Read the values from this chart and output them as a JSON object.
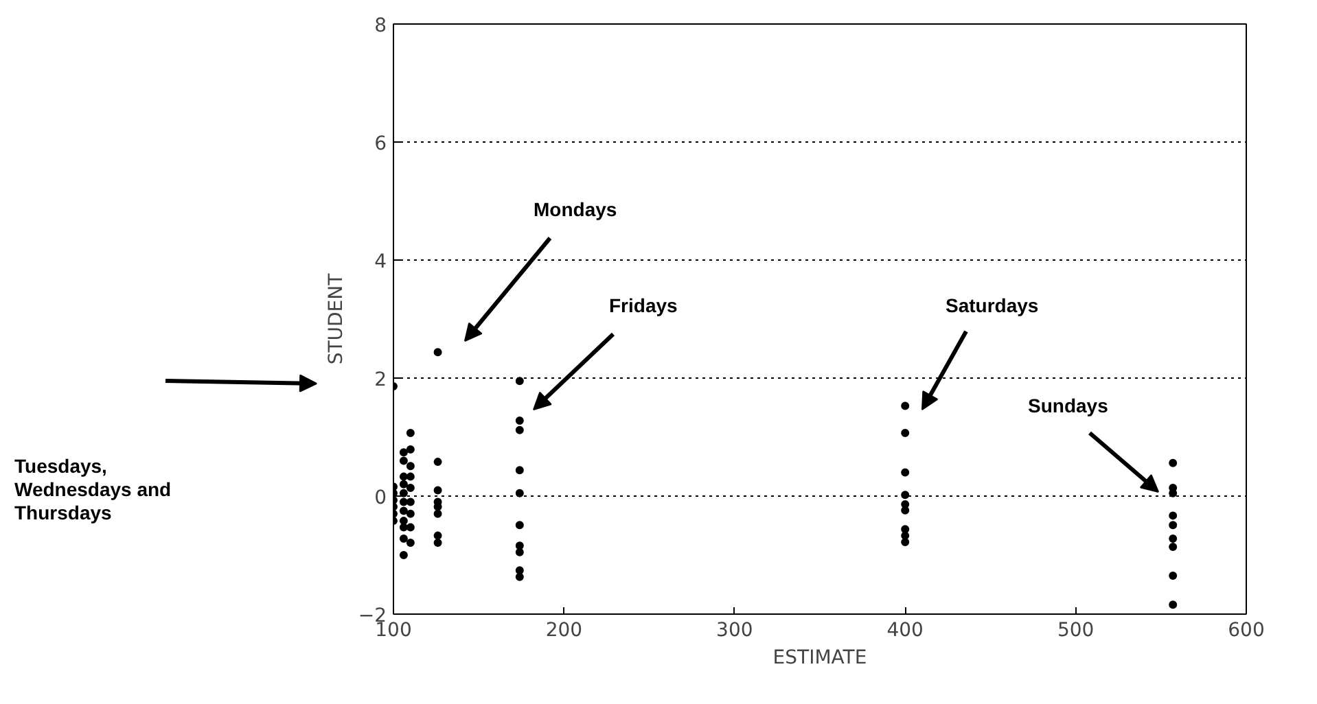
{
  "chart_data": {
    "type": "scatter",
    "xlabel": "ESTIMATE",
    "ylabel": "STUDENT",
    "x": [
      100,
      100,
      100,
      100,
      100,
      100,
      100,
      106,
      106,
      106,
      106,
      106,
      106,
      106,
      106,
      106,
      106,
      106,
      110,
      110,
      110,
      110,
      110,
      110,
      110,
      110,
      110,
      126,
      126,
      126,
      126,
      126,
      126,
      126,
      126,
      174,
      174,
      174,
      174,
      174,
      174,
      174,
      174,
      174,
      174,
      400,
      400,
      400,
      400,
      400,
      400,
      400,
      400,
      400,
      557,
      557,
      557,
      557,
      557,
      557,
      557,
      557,
      557
    ],
    "series": [
      {
        "color": "#000000",
        "values": [
          1.86,
          0.16,
          0.05,
          -0.07,
          -0.18,
          -0.3,
          -0.42,
          0.74,
          0.6,
          0.33,
          0.2,
          0.05,
          -0.1,
          -0.25,
          -0.42,
          -0.53,
          -0.72,
          -1.0,
          1.07,
          0.79,
          0.51,
          0.33,
          0.14,
          -0.1,
          -0.3,
          -0.53,
          -0.79,
          2.44,
          0.58,
          0.1,
          -0.1,
          -0.18,
          -0.3,
          -0.67,
          -0.79,
          1.95,
          1.28,
          1.12,
          0.44,
          0.05,
          -0.49,
          -0.84,
          -0.95,
          -1.26,
          -1.37,
          1.53,
          1.07,
          0.4,
          0.02,
          -0.14,
          -0.24,
          -0.56,
          -0.67,
          -0.78,
          0.56,
          0.14,
          0.05,
          -0.33,
          -0.49,
          -0.72,
          -0.86,
          -1.35,
          -1.84
        ]
      }
    ],
    "marker": "circle",
    "xlim": [
      100,
      600
    ],
    "ylim": [
      -2,
      8
    ],
    "xticks": [
      100,
      200,
      300,
      400,
      500,
      600
    ],
    "yticks": [
      -2,
      0,
      2,
      4,
      6,
      8
    ],
    "grid": "y",
    "annotations": [
      "Mondays",
      "Fridays",
      "Saturdays",
      "Sundays",
      "Tuesdays,\nWednesdays and\nThursdays"
    ]
  }
}
